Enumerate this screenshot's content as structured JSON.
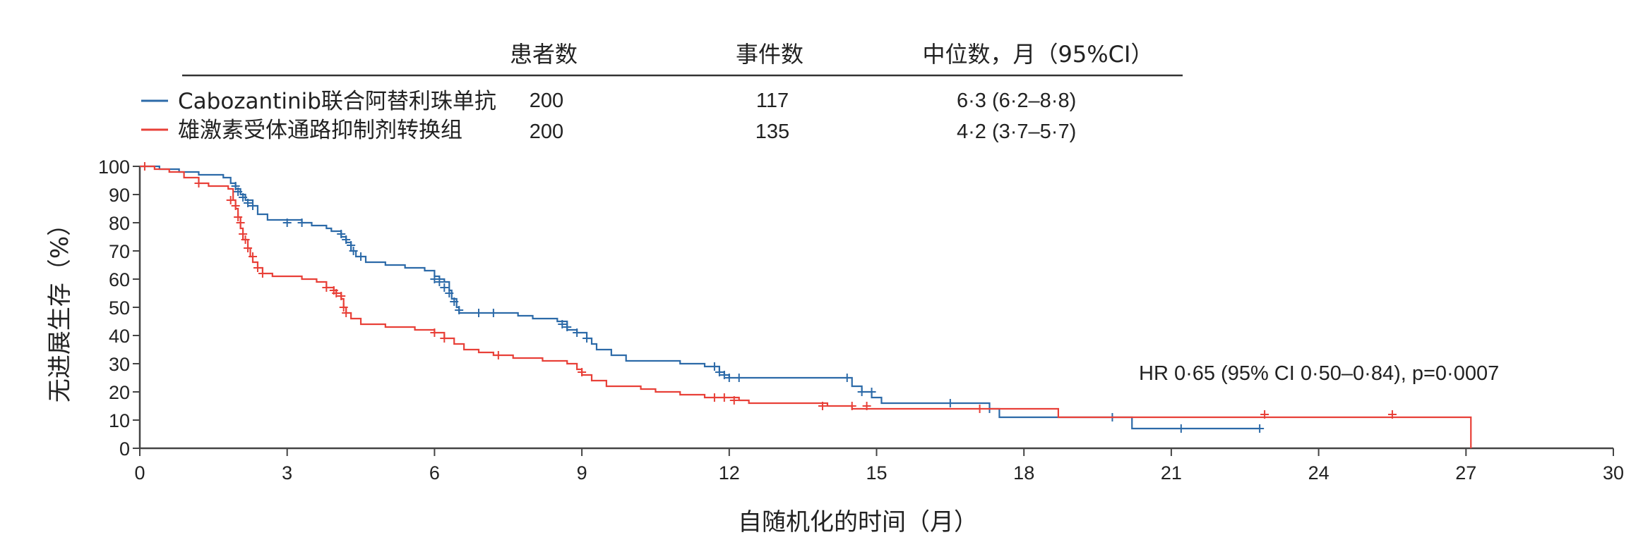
{
  "chart_data": {
    "type": "line",
    "subtype": "kaplan-meier step curve with censor marks",
    "xlabel": "自随机化的时间（月）",
    "ylabel": "无进展生存（%）",
    "xlim": [
      0,
      30
    ],
    "ylim": [
      0,
      100
    ],
    "x_ticks": [
      "0",
      "3",
      "6",
      "9",
      "12",
      "15",
      "18",
      "21",
      "24",
      "27",
      "30"
    ],
    "y_ticks": [
      "0",
      "10",
      "20",
      "30",
      "40",
      "50",
      "60",
      "70",
      "80",
      "90",
      "100"
    ],
    "grid": false,
    "legend_table": {
      "headers": [
        "患者数",
        "事件数",
        "中位数，月（95%CI）"
      ],
      "rows": [
        {
          "label": "Cabozantinib联合阿替利珠单抗",
          "patients": "200",
          "events": "117",
          "median": "6·3 (6·2–8·8)"
        },
        {
          "label": "雄激素受体通路抑制剂转换组",
          "patients": "200",
          "events": "135",
          "median": "4·2 (3·7–5·7)"
        }
      ]
    },
    "annotation": "HR 0·65 (95% CI 0·50–0·84), p=0·0007",
    "series": [
      {
        "name": "Cabozantinib联合阿替利珠单抗",
        "color": "#2c6aa8",
        "steps": [
          [
            0,
            100
          ],
          [
            0.4,
            99
          ],
          [
            0.8,
            98
          ],
          [
            1.2,
            97
          ],
          [
            1.7,
            96
          ],
          [
            1.85,
            94
          ],
          [
            1.95,
            92
          ],
          [
            2.05,
            90
          ],
          [
            2.15,
            88
          ],
          [
            2.3,
            86
          ],
          [
            2.4,
            83
          ],
          [
            2.6,
            81
          ],
          [
            3.3,
            80
          ],
          [
            3.5,
            79
          ],
          [
            3.8,
            78
          ],
          [
            3.9,
            77
          ],
          [
            4.1,
            75
          ],
          [
            4.2,
            73
          ],
          [
            4.3,
            70
          ],
          [
            4.4,
            68
          ],
          [
            4.6,
            66
          ],
          [
            5.0,
            65
          ],
          [
            5.4,
            64
          ],
          [
            5.8,
            63
          ],
          [
            6.0,
            61
          ],
          [
            6.1,
            60
          ],
          [
            6.2,
            59
          ],
          [
            6.3,
            56
          ],
          [
            6.35,
            53
          ],
          [
            6.45,
            50
          ],
          [
            6.5,
            48
          ],
          [
            6.9,
            48
          ],
          [
            7.7,
            47
          ],
          [
            8.0,
            46
          ],
          [
            8.5,
            45
          ],
          [
            8.7,
            42
          ],
          [
            8.9,
            41
          ],
          [
            9.1,
            39
          ],
          [
            9.2,
            37
          ],
          [
            9.3,
            35
          ],
          [
            9.6,
            33
          ],
          [
            9.9,
            31
          ],
          [
            11.0,
            30
          ],
          [
            11.5,
            29
          ],
          [
            11.8,
            27
          ],
          [
            11.9,
            26
          ],
          [
            12.0,
            25
          ],
          [
            12.3,
            25
          ],
          [
            14.5,
            22
          ],
          [
            14.7,
            20
          ],
          [
            14.9,
            18
          ],
          [
            15.1,
            16
          ],
          [
            15.5,
            16
          ],
          [
            17.3,
            14
          ],
          [
            17.5,
            11
          ],
          [
            20.2,
            7
          ],
          [
            22.8,
            7
          ]
        ],
        "censor": [
          [
            1.95,
            93
          ],
          [
            2.0,
            91
          ],
          [
            2.1,
            89
          ],
          [
            2.2,
            87
          ],
          [
            2.3,
            86
          ],
          [
            3.0,
            80
          ],
          [
            3.3,
            80
          ],
          [
            4.1,
            76
          ],
          [
            4.2,
            74
          ],
          [
            4.3,
            72
          ],
          [
            4.35,
            70
          ],
          [
            4.5,
            68
          ],
          [
            6.0,
            60
          ],
          [
            6.1,
            59
          ],
          [
            6.2,
            57
          ],
          [
            6.3,
            55
          ],
          [
            6.4,
            52
          ],
          [
            6.5,
            49
          ],
          [
            6.9,
            48
          ],
          [
            7.2,
            48
          ],
          [
            8.6,
            44
          ],
          [
            8.7,
            43
          ],
          [
            8.9,
            41
          ],
          [
            9.1,
            39
          ],
          [
            11.7,
            29
          ],
          [
            11.8,
            27
          ],
          [
            11.9,
            26
          ],
          [
            12.0,
            25
          ],
          [
            12.2,
            25
          ],
          [
            14.4,
            25
          ],
          [
            14.7,
            20
          ],
          [
            14.9,
            20
          ],
          [
            16.5,
            16
          ],
          [
            17.3,
            14
          ],
          [
            19.8,
            11
          ],
          [
            21.2,
            7
          ],
          [
            22.8,
            7
          ]
        ]
      },
      {
        "name": "雄激素受体通路抑制剂转换组",
        "color": "#e84038",
        "steps": [
          [
            0,
            100
          ],
          [
            0.3,
            99
          ],
          [
            0.6,
            98
          ],
          [
            0.9,
            96
          ],
          [
            1.2,
            94
          ],
          [
            1.4,
            93
          ],
          [
            1.8,
            92
          ],
          [
            1.9,
            88
          ],
          [
            1.95,
            85
          ],
          [
            2.0,
            82
          ],
          [
            2.05,
            78
          ],
          [
            2.1,
            74
          ],
          [
            2.2,
            71
          ],
          [
            2.25,
            68
          ],
          [
            2.3,
            66
          ],
          [
            2.4,
            64
          ],
          [
            2.5,
            62
          ],
          [
            2.7,
            61
          ],
          [
            3.3,
            60
          ],
          [
            3.6,
            59
          ],
          [
            3.8,
            57
          ],
          [
            3.95,
            56
          ],
          [
            4.0,
            55
          ],
          [
            4.1,
            53
          ],
          [
            4.15,
            50
          ],
          [
            4.2,
            48
          ],
          [
            4.3,
            46
          ],
          [
            4.5,
            44
          ],
          [
            5.0,
            43
          ],
          [
            5.6,
            42
          ],
          [
            6.0,
            41
          ],
          [
            6.2,
            39
          ],
          [
            6.4,
            37
          ],
          [
            6.6,
            35
          ],
          [
            6.9,
            34
          ],
          [
            7.2,
            33
          ],
          [
            7.6,
            32
          ],
          [
            8.2,
            31
          ],
          [
            8.7,
            30
          ],
          [
            8.9,
            28
          ],
          [
            9.0,
            26
          ],
          [
            9.2,
            24
          ],
          [
            9.5,
            22
          ],
          [
            10.2,
            21
          ],
          [
            10.5,
            20
          ],
          [
            11.0,
            19
          ],
          [
            11.5,
            18
          ],
          [
            12.2,
            17
          ],
          [
            12.4,
            16
          ],
          [
            14.0,
            15
          ],
          [
            14.5,
            14
          ],
          [
            14.8,
            14
          ],
          [
            18.7,
            11
          ],
          [
            26.9,
            11
          ],
          [
            27.1,
            0
          ]
        ],
        "censor": [
          [
            0.1,
            100
          ],
          [
            1.2,
            94
          ],
          [
            1.85,
            88
          ],
          [
            1.95,
            86
          ],
          [
            2.0,
            82
          ],
          [
            2.05,
            80
          ],
          [
            2.1,
            76
          ],
          [
            2.15,
            74
          ],
          [
            2.2,
            71
          ],
          [
            2.3,
            68
          ],
          [
            2.4,
            64
          ],
          [
            2.5,
            62
          ],
          [
            3.8,
            57
          ],
          [
            3.95,
            56
          ],
          [
            4.0,
            55
          ],
          [
            4.1,
            54
          ],
          [
            4.15,
            50
          ],
          [
            4.2,
            48
          ],
          [
            6.0,
            41
          ],
          [
            6.2,
            39
          ],
          [
            7.3,
            33
          ],
          [
            9.0,
            27
          ],
          [
            11.7,
            18
          ],
          [
            11.9,
            18
          ],
          [
            12.1,
            17
          ],
          [
            13.9,
            15
          ],
          [
            14.5,
            15
          ],
          [
            14.8,
            15
          ],
          [
            17.1,
            14
          ],
          [
            22.9,
            12
          ],
          [
            25.5,
            12
          ]
        ]
      }
    ]
  }
}
